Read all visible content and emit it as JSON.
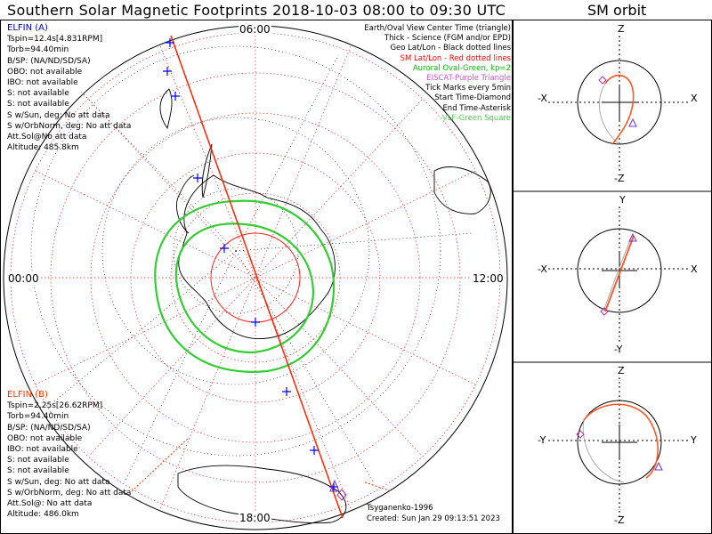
{
  "title": "Southern Solar Magnetic Footprints 2018-10-03 08:00 to 09:30 UTC",
  "sm_title": "SM orbit",
  "hours": {
    "top": "06:00",
    "left": "00:00",
    "right": "12:00",
    "bottom": "18:00"
  },
  "spacecraft_a": {
    "name": "ELFIN (A)",
    "lines": [
      "Tspin=12.4s[4.831RPM]",
      "Torb=94.40min",
      "B/SP: (NA/ND/SD/SA)",
      "OBO: not available",
      "IBO: not available",
      "S: not available",
      "S: not available",
      "S w/Sun, deg: No att data",
      "S w/OrbNorm, deg: No att data",
      "Att.Sol@No att data",
      "Altitude: 485.8km"
    ],
    "color": "#0000cc"
  },
  "spacecraft_b": {
    "name": "ELFIN (B)",
    "lines": [
      "Tspin=2.25s[26.62RPM]",
      "Torb=94.40min",
      "B/SP: (NA/ND/SD/SA)",
      "OBO: not available",
      "IBO: not available",
      "S: not available",
      "S: not available",
      "S w/Sun, deg: No att data",
      "S w/OrbNorm, deg: No att data",
      "Att.Sol@: No att data",
      "Altitude: 486.0km"
    ],
    "color": "#ff3300"
  },
  "legend": [
    {
      "text": "Earth/Oval View Center Time (triangle)",
      "color": "#000000"
    },
    {
      "text": "Thick - Science (FGM and/or EPD)",
      "color": "#000000"
    },
    {
      "text": "Geo Lat/Lon - Black dotted lines",
      "color": "#000000"
    },
    {
      "text": "SM Lat/Lon - Red dotted lines",
      "color": "#ff0000"
    },
    {
      "text": "Auroral Oval-Green, kp=2",
      "color": "#00bb00"
    },
    {
      "text": "EISCAT-Purple Triangle",
      "color": "#cc55cc"
    },
    {
      "text": "Tick Marks every 5min",
      "color": "#000000"
    },
    {
      "text": "Start Time-Diamond",
      "color": "#000000"
    },
    {
      "text": "End Time-Asterisk",
      "color": "#000000"
    },
    {
      "text": "VLF-Green Square",
      "color": "#55cc55"
    }
  ],
  "credits": [
    "Tsyganenko-1996",
    "Created: Sun Jan 29 09:13:51 2023"
  ],
  "orbit_panels": [
    {
      "top": "Z",
      "bottom": "-Z",
      "left": "-X",
      "right": "X"
    },
    {
      "top": "Y",
      "bottom": "-Y",
      "left": "-X",
      "right": "X"
    },
    {
      "top": "Z",
      "bottom": "-Z",
      "left": "-Y",
      "right": "Y"
    }
  ],
  "colors": {
    "track": "#ff2200",
    "oval": "#33cc33",
    "tick": "#0000ff",
    "orbit": "#ff5522"
  }
}
